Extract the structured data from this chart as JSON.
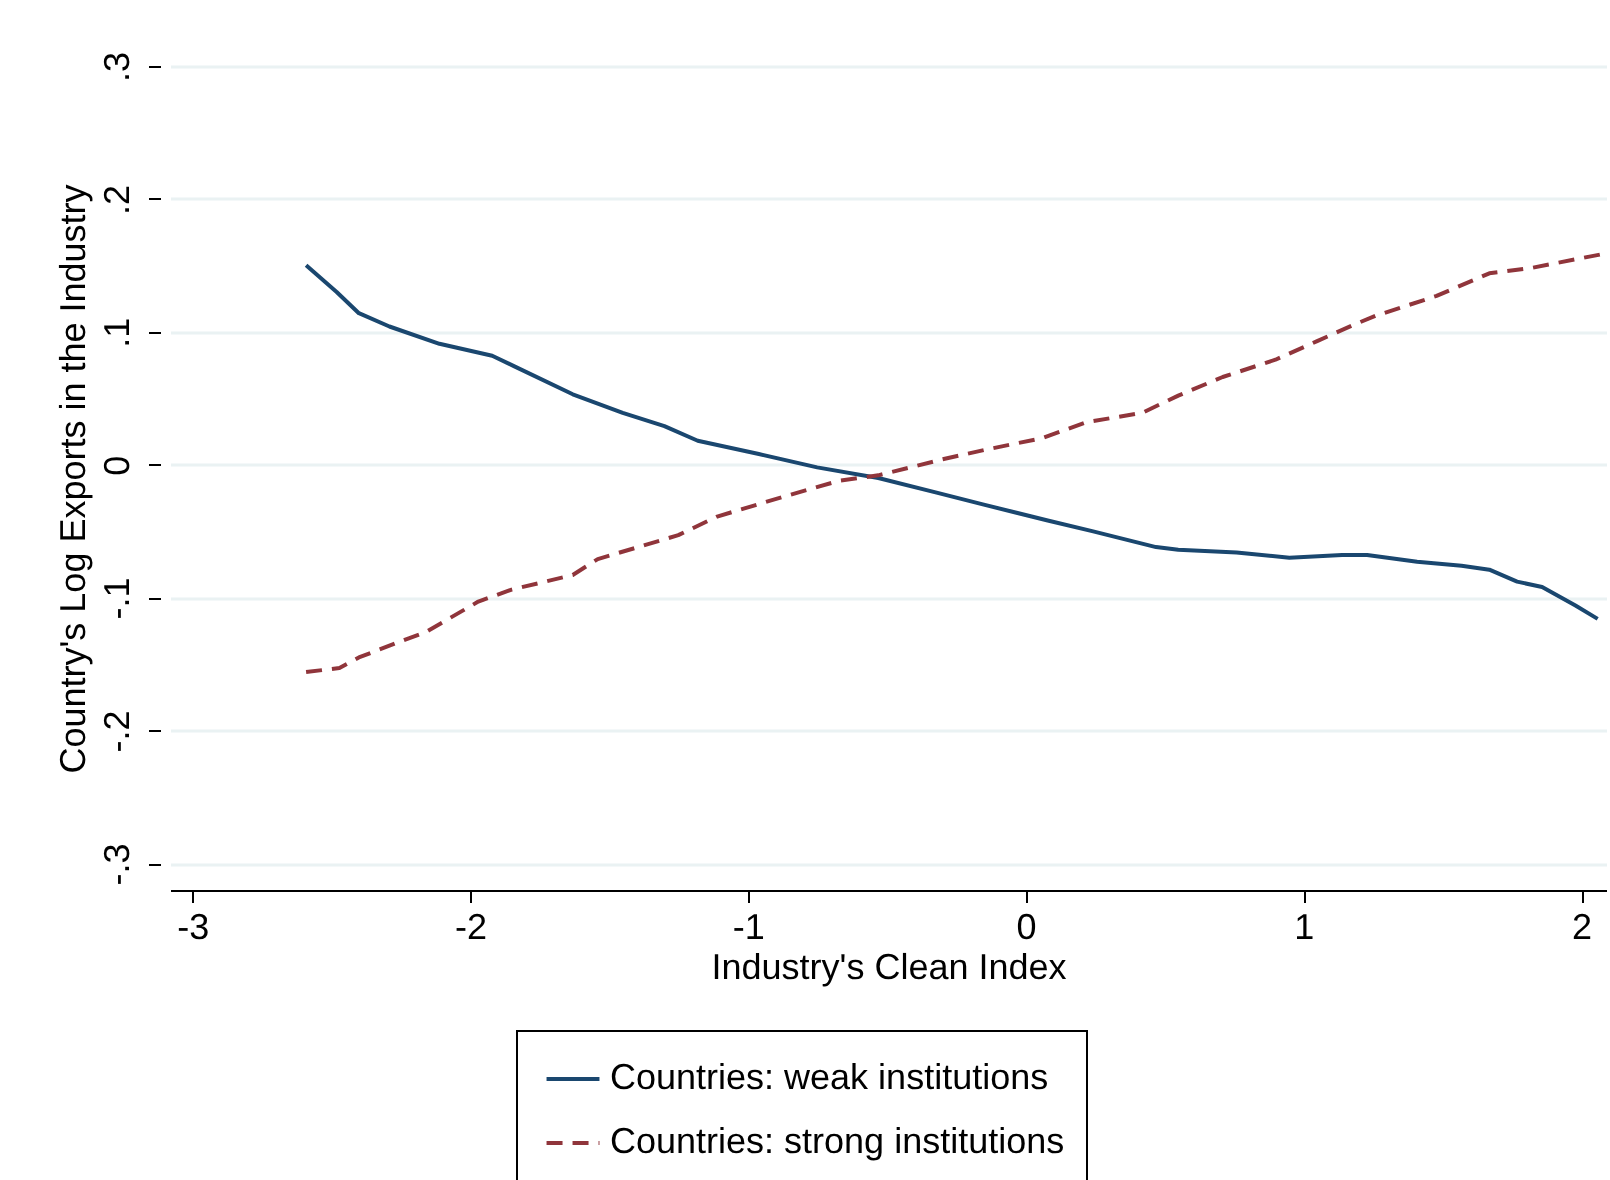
{
  "chart_data": {
    "type": "line",
    "xlabel": "Industry's Clean Index",
    "ylabel": "Country's Log Exports in the Industry",
    "xlim": [
      -3.08,
      2.09
    ],
    "ylim": [
      -0.32,
      0.3
    ],
    "xticks": [
      -3,
      -2,
      -1,
      0,
      1,
      2
    ],
    "yticks": [
      {
        "value": -0.3,
        "label": "-.3"
      },
      {
        "value": -0.2,
        "label": "-.2"
      },
      {
        "value": -0.1,
        "label": "-.1"
      },
      0,
      {
        "value": 0.1,
        "label": ".1"
      },
      {
        "value": 0.2,
        "label": ".2"
      },
      {
        "value": 0.3,
        "label": ".3"
      }
    ],
    "grid": "y",
    "legend": "bottom",
    "series": [
      {
        "name": "Countries: weak institutions",
        "color": "#1a476f",
        "line_style": "solid",
        "x": [
          -2.59,
          -2.48,
          -2.4,
          -2.29,
          -2.11,
          -1.92,
          -1.84,
          -1.63,
          -1.45,
          -1.3,
          -1.18,
          -0.96,
          -0.75,
          -0.53,
          -0.32,
          -0.15,
          0.08,
          0.24,
          0.47,
          0.55,
          0.76,
          0.95,
          1.14,
          1.23,
          1.41,
          1.57,
          1.67,
          1.77,
          1.86,
          1.98,
          2.06
        ],
        "values": [
          0.15,
          0.13,
          0.114,
          0.104,
          0.091,
          0.082,
          0.074,
          0.053,
          0.039,
          0.029,
          0.018,
          0.008,
          -0.002,
          -0.01,
          -0.021,
          -0.03,
          -0.042,
          -0.05,
          -0.062,
          -0.064,
          -0.066,
          -0.07,
          -0.068,
          -0.068,
          -0.073,
          -0.076,
          -0.079,
          -0.088,
          -0.092,
          -0.106,
          -0.116
        ]
      },
      {
        "name": "Countries: strong institutions",
        "color": "#90353b",
        "line_style": "dashed",
        "x": [
          -2.59,
          -2.47,
          -2.4,
          -2.25,
          -2.16,
          -1.97,
          -1.85,
          -1.63,
          -1.54,
          -1.25,
          -1.11,
          -0.87,
          -0.67,
          -0.53,
          -0.3,
          -0.15,
          0.06,
          0.22,
          0.42,
          0.55,
          0.71,
          0.9,
          1.05,
          1.19,
          1.26,
          1.48,
          1.67,
          1.82,
          2.09
        ],
        "values": [
          -0.156,
          -0.153,
          -0.145,
          -0.133,
          -0.126,
          -0.103,
          -0.094,
          -0.083,
          -0.071,
          -0.053,
          -0.039,
          -0.024,
          -0.012,
          -0.008,
          0.004,
          0.011,
          0.02,
          0.032,
          0.039,
          0.052,
          0.066,
          0.079,
          0.093,
          0.106,
          0.112,
          0.127,
          0.144,
          0.148,
          0.159
        ]
      }
    ]
  }
}
